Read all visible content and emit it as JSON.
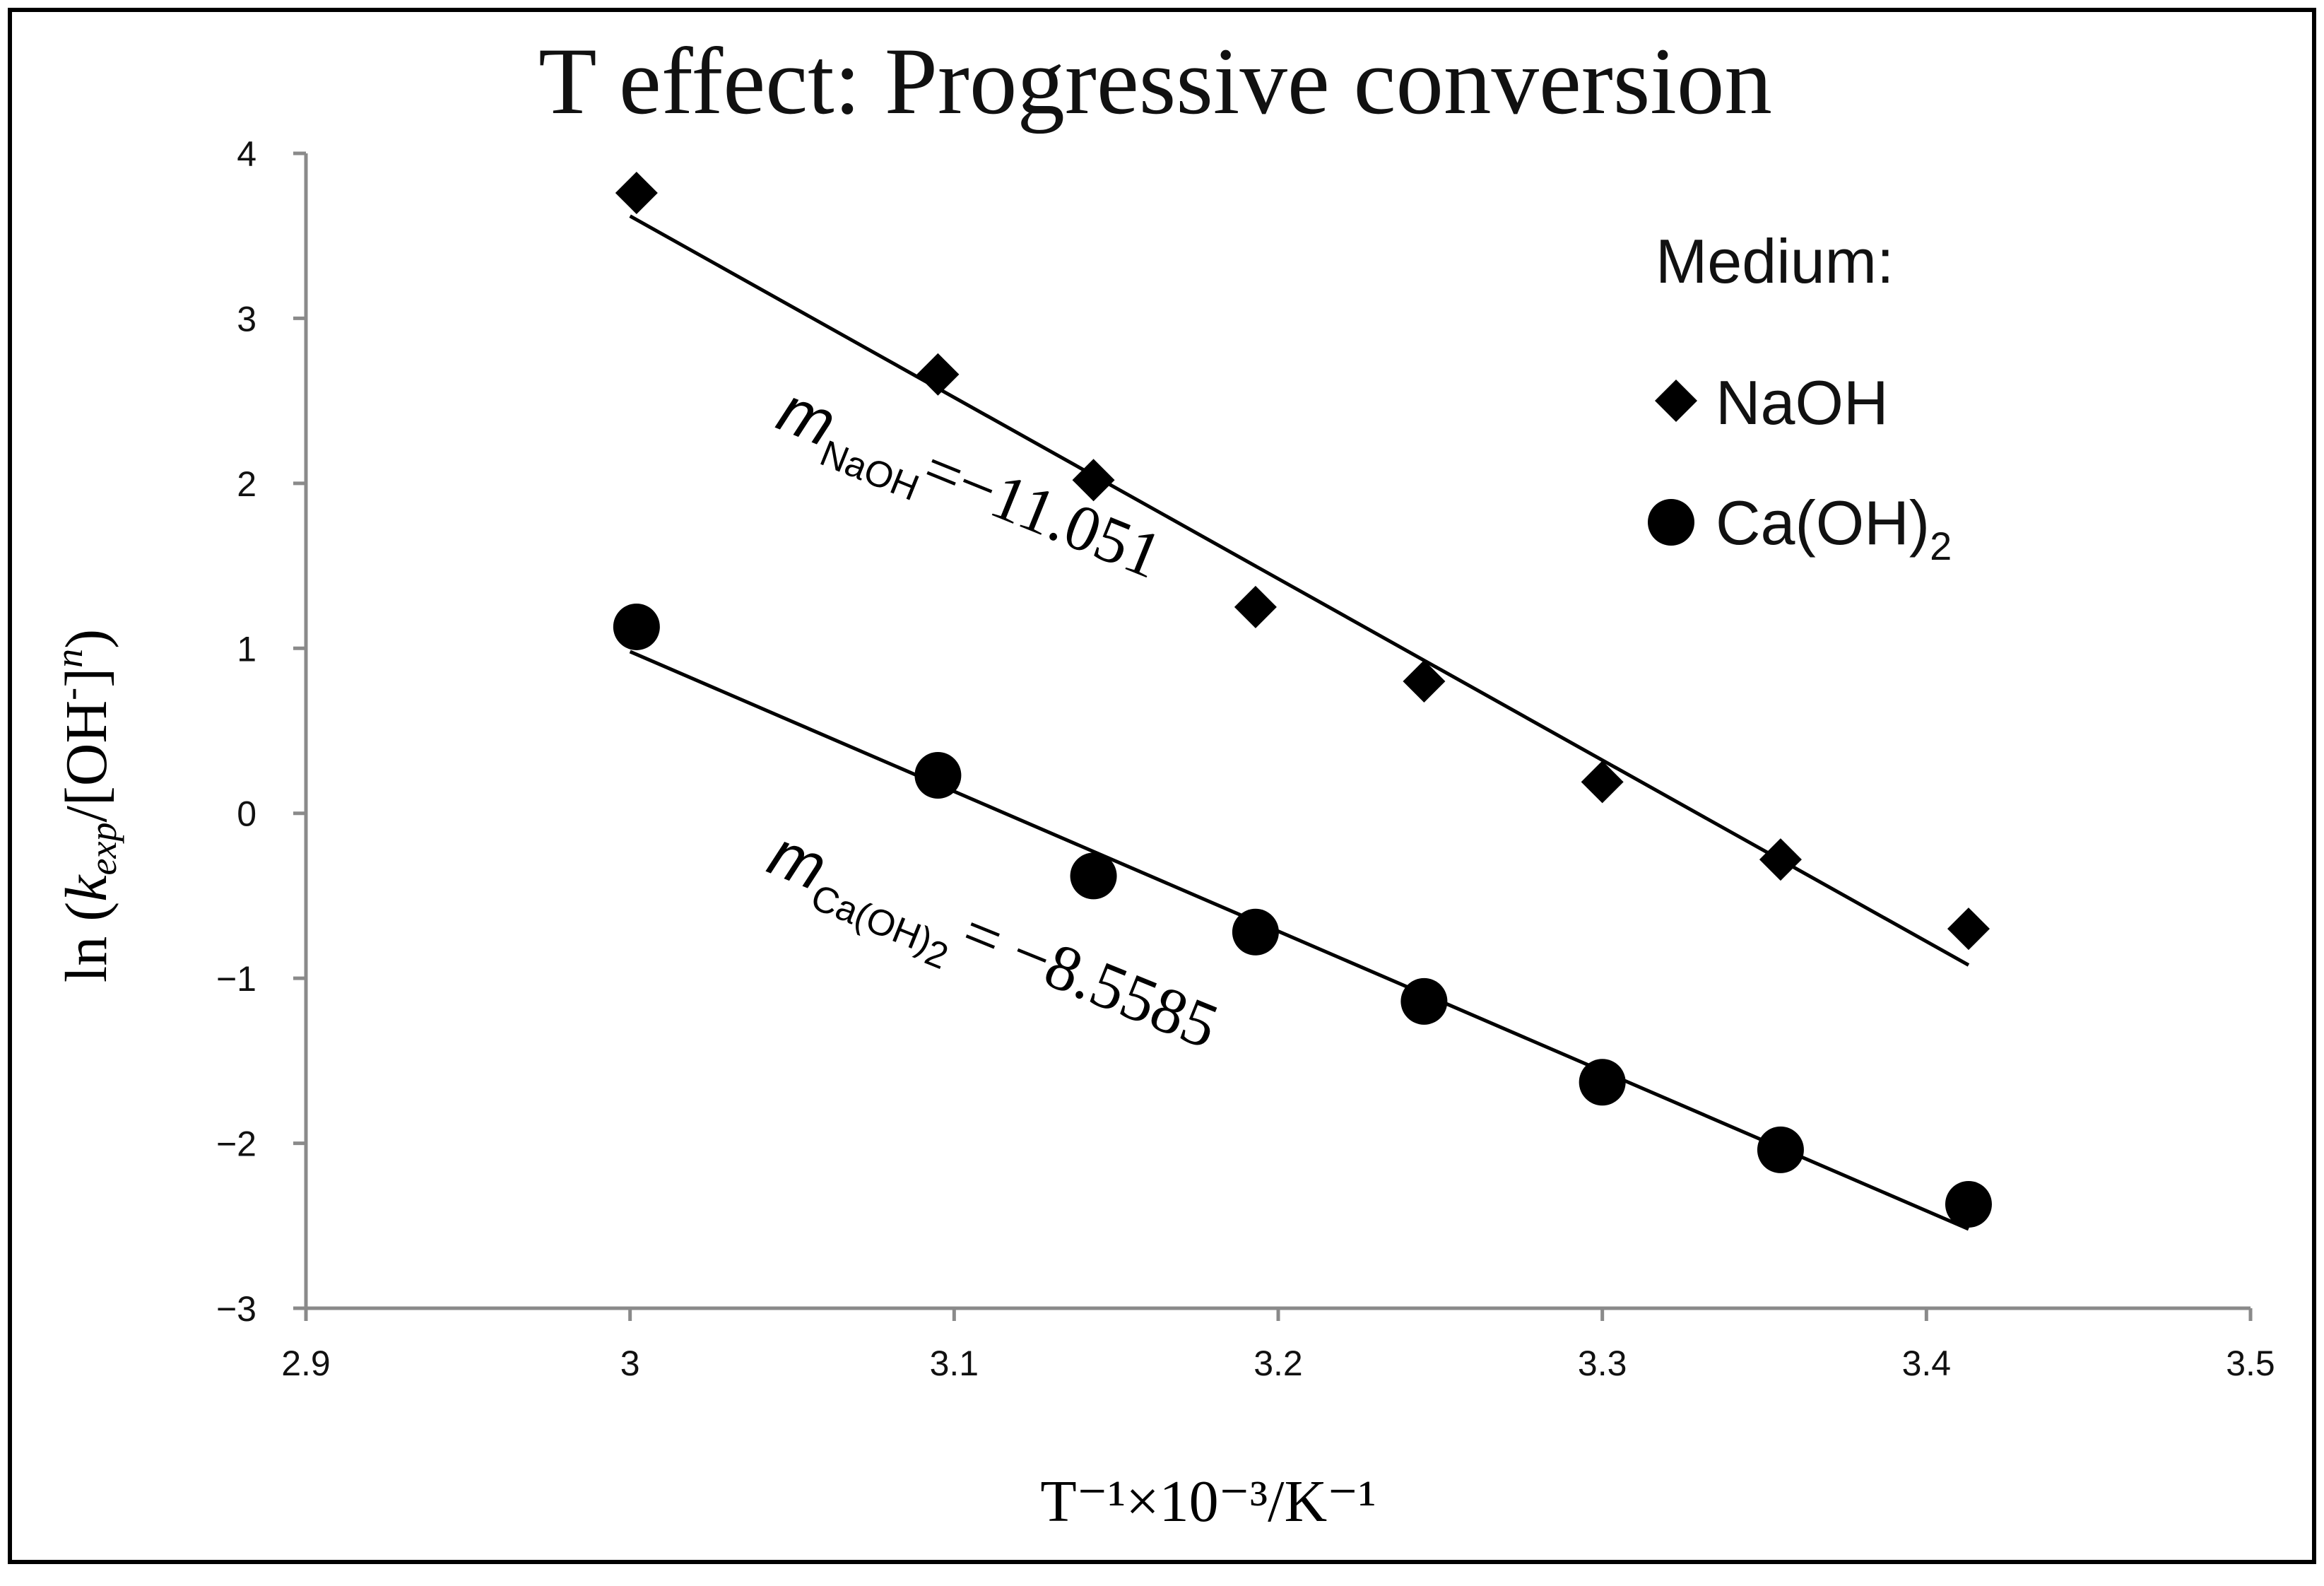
{
  "chart_data": {
    "type": "scatter",
    "title": "T effect: Progressive conversion",
    "xlabel": "T⁻¹×10⁻³/K⁻¹",
    "ylabel": {
      "prefix": "ln (",
      "k": "k",
      "k_sub": "exp",
      "mid": "/[OH",
      "minus": "-",
      "close": "]",
      "n": "n",
      "suffix": ")"
    },
    "xlim": [
      2.9,
      3.5
    ],
    "ylim": [
      -3,
      4
    ],
    "xticks": [
      "2.9",
      "3",
      "3.1",
      "3.2",
      "3.3",
      "3.4",
      "3.5"
    ],
    "yticks": [
      "−3",
      "−2",
      "−1",
      "0",
      "1",
      "2",
      "3",
      "4"
    ],
    "legend": {
      "title": "Medium:",
      "position": "top-right"
    },
    "series": [
      {
        "name": "NaOH",
        "label": "NaOH",
        "marker": "diamond",
        "x": [
          3.002,
          3.095,
          3.143,
          3.193,
          3.245,
          3.3,
          3.355,
          3.413
        ],
        "y": [
          3.76,
          2.66,
          2.02,
          1.25,
          0.8,
          0.19,
          -0.28,
          -0.7
        ],
        "fit": {
          "slope": -11.051,
          "x0": 3.0,
          "y0": 3.62,
          "x1": 3.413,
          "y1": -0.92
        },
        "annotation": {
          "symbol": "m",
          "subscript": "NaOH",
          "value": "=−11.051"
        }
      },
      {
        "name": "Ca(OH)2",
        "label": "Ca(OH)",
        "label_sub": "2",
        "marker": "circle",
        "x": [
          3.002,
          3.095,
          3.143,
          3.193,
          3.245,
          3.3,
          3.355,
          3.413
        ],
        "y": [
          1.13,
          0.23,
          -0.38,
          -0.72,
          -1.14,
          -1.63,
          -2.04,
          -2.37
        ],
        "fit": {
          "slope": -8.5585,
          "x0": 3.0,
          "y0": 0.98,
          "x1": 3.413,
          "y1": -2.52
        },
        "annotation": {
          "symbol": "m",
          "subscript": "Ca(OH)",
          "subscript_sub": "2",
          "value": "= −8.5585"
        }
      }
    ]
  }
}
